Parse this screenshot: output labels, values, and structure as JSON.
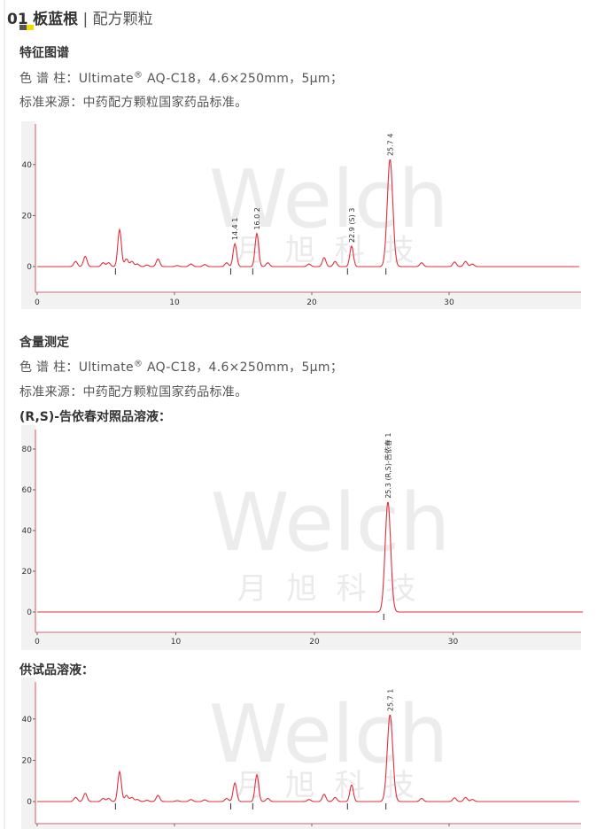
{
  "header": {
    "number": "01",
    "title": "板蓝根",
    "separator": "|",
    "subtitle": "配方颗粒"
  },
  "fingerprint": {
    "heading": "特征图谱",
    "column_label": "色 谱 柱：Ultimate",
    "column_reg": "®",
    "column_spec": " AQ-C18，4.6×250mm，5μm；",
    "source": "标准来源：中药配方颗粒国家药品标准。"
  },
  "assay": {
    "heading": "含量测定",
    "column_label": "色 谱 柱：Ultimate",
    "column_reg": "®",
    "column_spec": " AQ-C18，4.6×250mm，5μm；",
    "source": "标准来源：中药配方颗粒国家药品标准。",
    "reference_label": "(R,S)-告依春对照品溶液：",
    "sample_label": "供试品溶液："
  },
  "watermark": {
    "logo": "Welch",
    "cn": "月旭科技"
  },
  "colors": {
    "trace": "#e0303c",
    "axis": "#e05060"
  },
  "chart_data": [
    {
      "type": "line",
      "name": "fingerprint",
      "xlim": [
        0,
        39.5
      ],
      "ylim": [
        -10,
        55
      ],
      "xticks": [
        0,
        10,
        20,
        30
      ],
      "yticks": [
        0,
        20,
        40
      ],
      "grid": false,
      "peaks": [
        [
          2.8,
          2
        ],
        [
          3.5,
          4
        ],
        [
          4.8,
          1.5
        ],
        [
          5.2,
          1.5
        ],
        [
          6.0,
          14.5
        ],
        [
          6.5,
          3
        ],
        [
          6.9,
          2
        ],
        [
          7.3,
          1
        ],
        [
          8.0,
          0.6
        ],
        [
          8.8,
          3
        ],
        [
          10.2,
          0.4
        ],
        [
          11.2,
          1
        ],
        [
          12.2,
          0.8
        ],
        [
          13.8,
          1.5
        ],
        [
          14.4,
          9
        ],
        [
          16.0,
          13
        ],
        [
          16.8,
          1.5
        ],
        [
          19.8,
          1
        ],
        [
          20.9,
          3.5
        ],
        [
          21.7,
          2
        ],
        [
          22.9,
          8
        ],
        [
          25.7,
          42
        ],
        [
          28.0,
          1.5
        ],
        [
          30.4,
          1.8
        ],
        [
          31.2,
          2
        ],
        [
          31.7,
          1
        ]
      ],
      "labels": [
        {
          "t": 14.4,
          "text": "14.4",
          "id": "1"
        },
        {
          "t": 16.0,
          "text": "16.0",
          "id": "2"
        },
        {
          "t": 22.9,
          "text": "22.9 (S)",
          "id": "3"
        },
        {
          "t": 25.7,
          "text": "25.7",
          "id": "4"
        }
      ]
    },
    {
      "type": "line",
      "name": "reference",
      "xlim": [
        0,
        39.5
      ],
      "ylim": [
        -10,
        88
      ],
      "xticks": [
        0,
        10,
        20,
        30
      ],
      "yticks": [
        0,
        20,
        40,
        60,
        80
      ],
      "grid": false,
      "peaks": [
        [
          25.3,
          54
        ]
      ],
      "labels": [
        {
          "t": 25.3,
          "text": "25.3 (R,S)-告依春",
          "id": "1"
        }
      ]
    },
    {
      "type": "line",
      "name": "sample",
      "xlim": [
        0,
        39.5
      ],
      "ylim": [
        -10,
        55
      ],
      "xticks": [],
      "yticks": [
        0,
        20,
        40
      ],
      "grid": false,
      "peaks": [
        [
          2.8,
          2
        ],
        [
          3.5,
          4
        ],
        [
          4.8,
          1.5
        ],
        [
          5.2,
          1.5
        ],
        [
          6.0,
          14.5
        ],
        [
          6.5,
          3
        ],
        [
          6.9,
          2
        ],
        [
          7.3,
          1
        ],
        [
          8.0,
          0.6
        ],
        [
          8.8,
          3
        ],
        [
          10.2,
          0.4
        ],
        [
          11.2,
          1
        ],
        [
          12.2,
          0.8
        ],
        [
          13.8,
          1.5
        ],
        [
          14.4,
          9
        ],
        [
          16.0,
          13
        ],
        [
          16.8,
          1.5
        ],
        [
          19.8,
          1
        ],
        [
          20.9,
          3.5
        ],
        [
          21.7,
          2
        ],
        [
          22.9,
          8
        ],
        [
          25.7,
          42
        ],
        [
          28.0,
          1.5
        ],
        [
          30.4,
          1.8
        ],
        [
          31.2,
          2
        ],
        [
          31.7,
          1
        ]
      ],
      "labels": [
        {
          "t": 25.7,
          "text": "25.7",
          "id": "1"
        }
      ]
    }
  ]
}
